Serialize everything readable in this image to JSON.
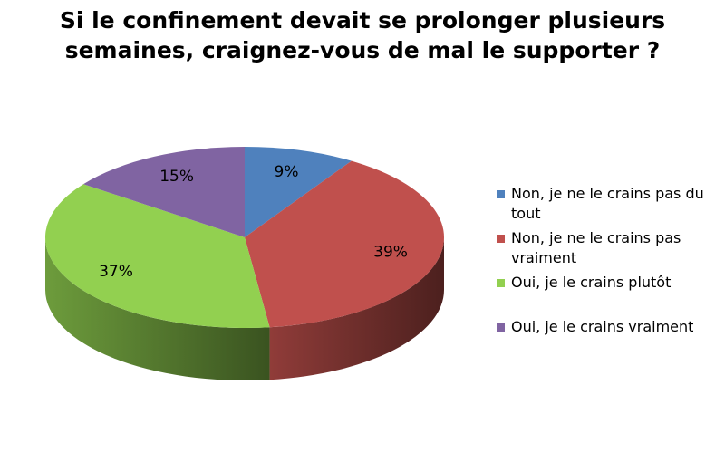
{
  "chart_data": {
    "type": "pie3d",
    "title": "Si le confinement devait se prolonger plusieurs semaines, craignez-vous de mal le supporter ?",
    "categories": [
      "Non, je ne le crains pas du tout",
      "Non, je ne le crains pas vraiment",
      "Oui, je le crains plutôt",
      "Oui, je le crains vraiment"
    ],
    "values": [
      9,
      39,
      37,
      15
    ],
    "value_labels": [
      "9%",
      "39%",
      "37%",
      "15%"
    ],
    "colors": [
      "#4f81bd",
      "#c0504d",
      "#92d050",
      "#8064a2"
    ],
    "legend": "right"
  }
}
